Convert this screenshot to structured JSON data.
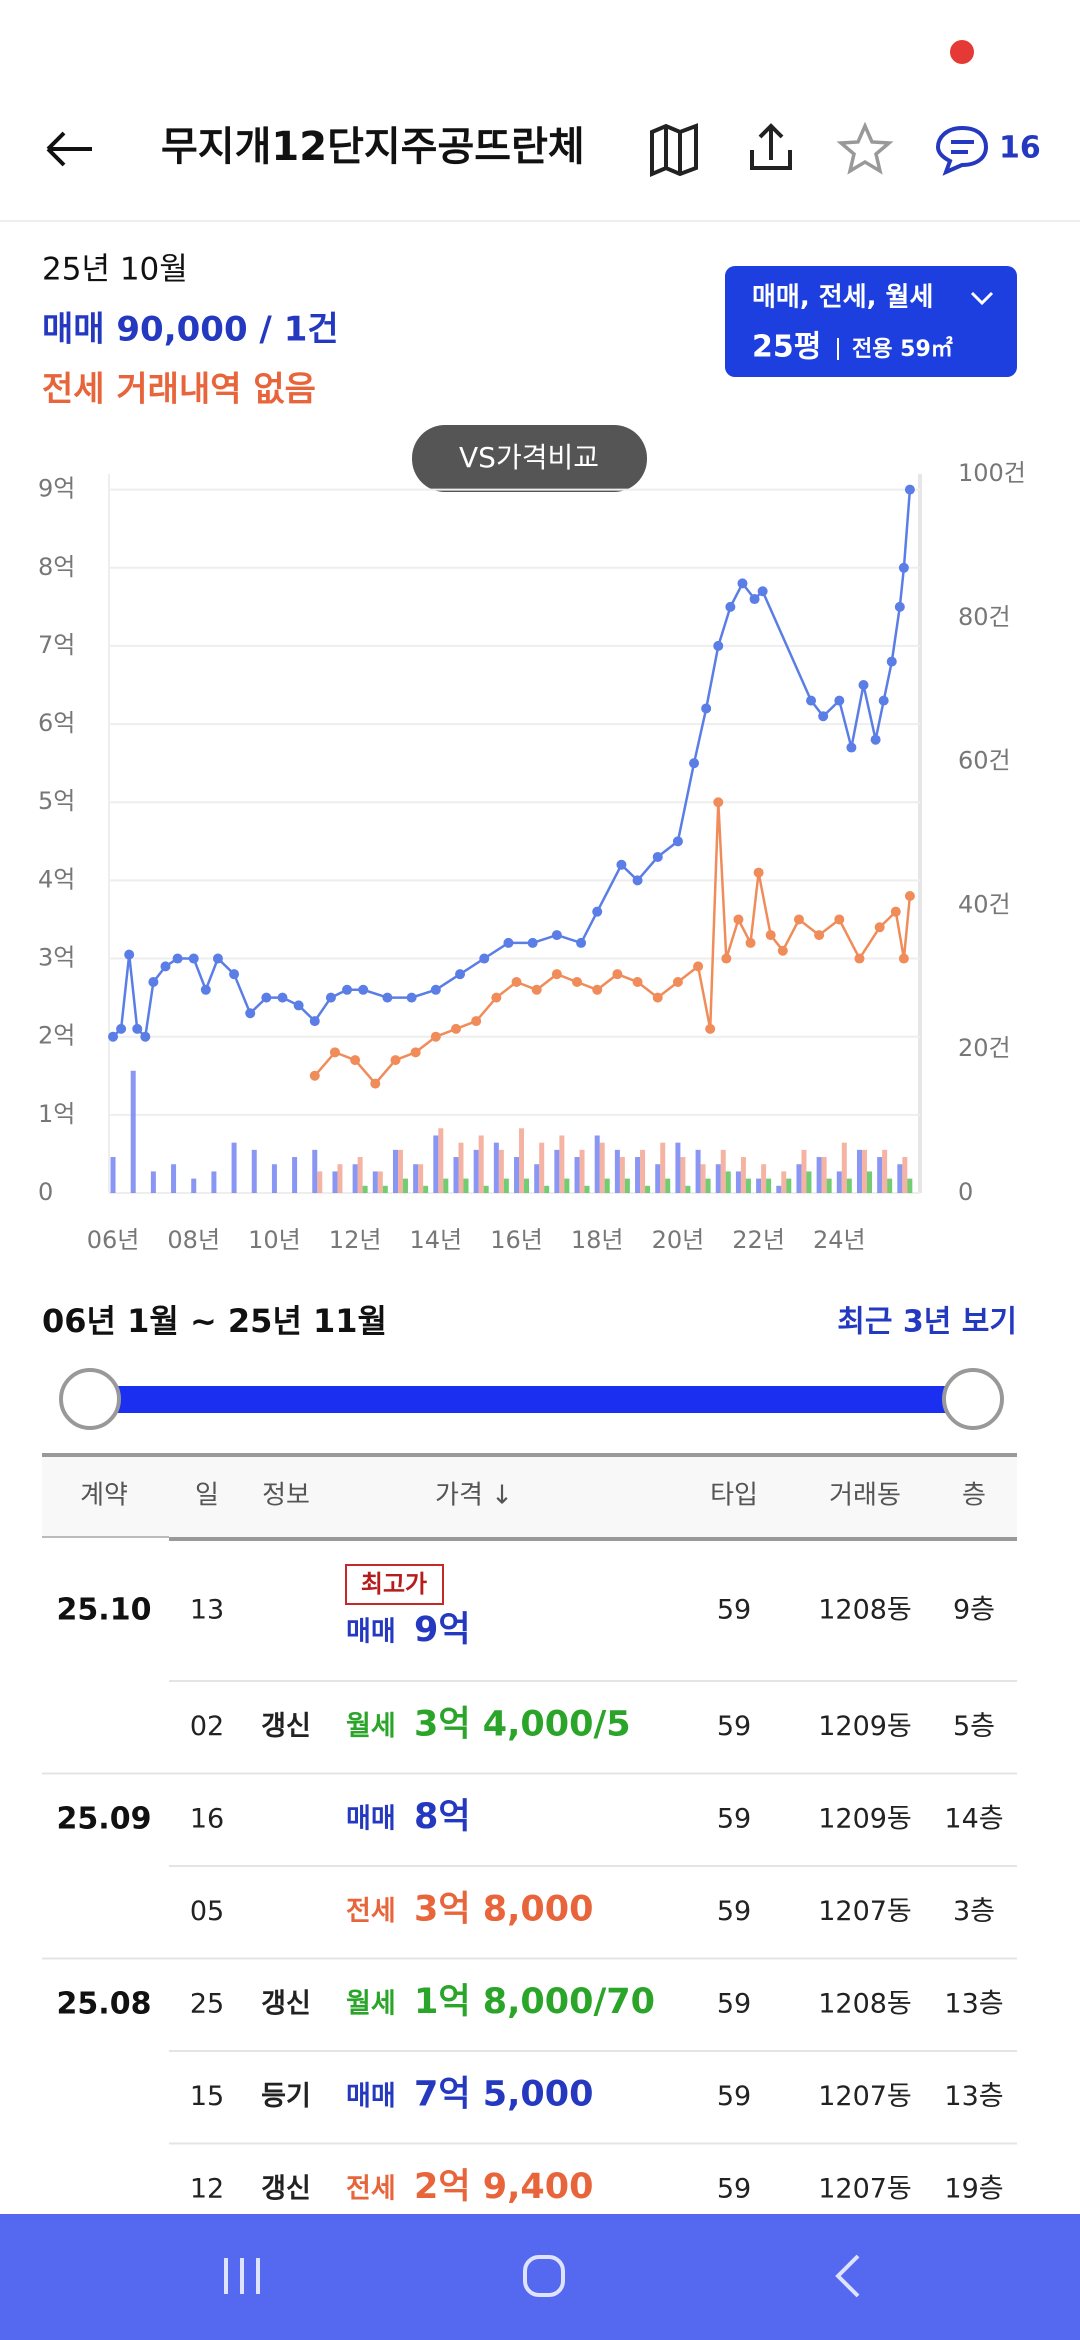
{
  "status": {
    "indicator": "record"
  },
  "header": {
    "title": "무지개12단지주공뜨란체",
    "comment_count": "16"
  },
  "summary": {
    "month": "25년 10월",
    "sale": "매매 90,000 / 1건",
    "jeonse": "전세 거래내역 없음"
  },
  "filter": {
    "types": "매매, 전세, 월세",
    "size": "25평",
    "area": "전용 59㎡"
  },
  "compare_button": "VS가격비교",
  "chart_data": {
    "type": "line",
    "xlim": [
      2005.9,
      2026.0
    ],
    "xticks": [
      {
        "value": 2006,
        "label": "06년"
      },
      {
        "value": 2008,
        "label": "08년"
      },
      {
        "value": 2010,
        "label": "10년"
      },
      {
        "value": 2012,
        "label": "12년"
      },
      {
        "value": 2014,
        "label": "14년"
      },
      {
        "value": 2016,
        "label": "16년"
      },
      {
        "value": 2018,
        "label": "18년"
      },
      {
        "value": 2020,
        "label": "20년"
      },
      {
        "value": 2022,
        "label": "22년"
      },
      {
        "value": 2024,
        "label": "24년"
      }
    ],
    "ylim": [
      0,
      9.2
    ],
    "yticks": [
      0,
      {
        "value": 1,
        "label": "1억"
      },
      {
        "value": 2,
        "label": "2억"
      },
      {
        "value": 3,
        "label": "3억"
      },
      {
        "value": 4,
        "label": "4억"
      },
      {
        "value": 5,
        "label": "5억"
      },
      {
        "value": 6,
        "label": "6억"
      },
      {
        "value": 7,
        "label": "7억"
      },
      {
        "value": 8,
        "label": "8억"
      },
      {
        "value": 9,
        "label": "9억"
      }
    ],
    "y2lim": [
      0,
      100
    ],
    "y2ticks": [
      0,
      {
        "value": 20,
        "label": "20건"
      },
      {
        "value": 40,
        "label": "40건"
      },
      {
        "value": 60,
        "label": "60건"
      },
      {
        "value": 80,
        "label": "80건"
      },
      {
        "value": 100,
        "label": "100건"
      }
    ],
    "grid": true,
    "series": [
      {
        "type": "bar",
        "axis": "y2",
        "color": "#6b7cf0",
        "x": [
          2006.0,
          2006.5,
          2007.0,
          2007.5,
          2008.0,
          2008.5,
          2009.0,
          2009.5,
          2010.0,
          2010.5,
          2011.0,
          2011.5,
          2012.0,
          2012.5,
          2013.0,
          2013.5,
          2014.0,
          2014.5,
          2015.0,
          2015.5,
          2016.0,
          2016.5,
          2017.0,
          2017.5,
          2018.0,
          2018.5,
          2019.0,
          2019.5,
          2020.0,
          2020.5,
          2021.0,
          2021.5,
          2022.0,
          2022.5,
          2023.0,
          2023.5,
          2024.0,
          2024.5,
          2025.0,
          2025.5
        ],
        "values": [
          5,
          17,
          3,
          4,
          2,
          3,
          7,
          6,
          4,
          5,
          6,
          3,
          4,
          3,
          6,
          4,
          8,
          5,
          6,
          7,
          5,
          4,
          6,
          5,
          8,
          6,
          5,
          4,
          7,
          6,
          4,
          3,
          2,
          1,
          4,
          5,
          3,
          6,
          5,
          4
        ]
      },
      {
        "type": "bar",
        "axis": "y2",
        "color": "#f3a08c",
        "x": [
          2006.0,
          2006.5,
          2007.0,
          2007.5,
          2008.0,
          2008.5,
          2009.0,
          2009.5,
          2010.0,
          2010.5,
          2011.0,
          2011.5,
          2012.0,
          2012.5,
          2013.0,
          2013.5,
          2014.0,
          2014.5,
          2015.0,
          2015.5,
          2016.0,
          2016.5,
          2017.0,
          2017.5,
          2018.0,
          2018.5,
          2019.0,
          2019.5,
          2020.0,
          2020.5,
          2021.0,
          2021.5,
          2022.0,
          2022.5,
          2023.0,
          2023.5,
          2024.0,
          2024.5,
          2025.0,
          2025.5
        ],
        "values": [
          null,
          null,
          null,
          null,
          null,
          null,
          null,
          null,
          null,
          null,
          3,
          4,
          5,
          3,
          6,
          4,
          9,
          7,
          8,
          6,
          9,
          7,
          8,
          6,
          7,
          5,
          6,
          7,
          5,
          4,
          6,
          5,
          4,
          3,
          6,
          5,
          7,
          6,
          6,
          5
        ]
      },
      {
        "type": "bar",
        "axis": "y2",
        "color": "#4fbf4f",
        "x": [
          2006.0,
          2006.5,
          2007.0,
          2007.5,
          2008.0,
          2008.5,
          2009.0,
          2009.5,
          2010.0,
          2010.5,
          2011.0,
          2011.5,
          2012.0,
          2012.5,
          2013.0,
          2013.5,
          2014.0,
          2014.5,
          2015.0,
          2015.5,
          2016.0,
          2016.5,
          2017.0,
          2017.5,
          2018.0,
          2018.5,
          2019.0,
          2019.5,
          2020.0,
          2020.5,
          2021.0,
          2021.5,
          2022.0,
          2022.5,
          2023.0,
          2023.5,
          2024.0,
          2024.5,
          2025.0,
          2025.5
        ],
        "values": [
          null,
          null,
          null,
          null,
          null,
          null,
          null,
          null,
          null,
          null,
          null,
          null,
          1,
          1,
          2,
          1,
          2,
          2,
          1,
          2,
          2,
          1,
          2,
          1,
          2,
          2,
          1,
          2,
          1,
          2,
          3,
          2,
          2,
          2,
          3,
          2,
          2,
          3,
          2,
          2
        ]
      },
      {
        "type": "line",
        "color": "#f08c5a",
        "x": [
          2011.0,
          2011.5,
          2012.0,
          2012.5,
          2013.0,
          2013.5,
          2014.0,
          2014.5,
          2015.0,
          2015.5,
          2016.0,
          2016.5,
          2017.0,
          2017.5,
          2018.0,
          2018.5,
          2019.0,
          2019.5,
          2020.0,
          2020.5,
          2020.8,
          2021.0,
          2021.2,
          2021.5,
          2021.8,
          2022.0,
          2022.3,
          2022.6,
          2023.0,
          2023.5,
          2024.0,
          2024.5,
          2025.0,
          2025.4,
          2025.6,
          2025.75
        ],
        "values": [
          1.5,
          1.8,
          1.7,
          1.4,
          1.7,
          1.8,
          2.0,
          2.1,
          2.2,
          2.5,
          2.7,
          2.6,
          2.8,
          2.7,
          2.6,
          2.8,
          2.7,
          2.5,
          2.7,
          2.9,
          2.1,
          5.0,
          3.0,
          3.5,
          3.2,
          4.1,
          3.3,
          3.1,
          3.5,
          3.3,
          3.5,
          3.0,
          3.4,
          3.6,
          3.0,
          3.8
        ]
      },
      {
        "type": "line",
        "color": "#5a7de6",
        "x": [
          2006.0,
          2006.2,
          2006.4,
          2006.6,
          2006.8,
          2007.0,
          2007.3,
          2007.6,
          2008.0,
          2008.3,
          2008.6,
          2009.0,
          2009.4,
          2009.8,
          2010.2,
          2010.6,
          2011.0,
          2011.4,
          2011.8,
          2012.2,
          2012.8,
          2013.4,
          2014.0,
          2014.6,
          2015.2,
          2015.8,
          2016.4,
          2017.0,
          2017.6,
          2018.0,
          2018.6,
          2019.0,
          2019.5,
          2020.0,
          2020.4,
          2020.7,
          2021.0,
          2021.3,
          2021.6,
          2021.9,
          2022.1,
          2023.3,
          2023.6,
          2024.0,
          2024.3,
          2024.6,
          2024.9,
          2025.1,
          2025.3,
          2025.5,
          2025.6,
          2025.75
        ],
        "values": [
          2.0,
          2.1,
          3.05,
          2.1,
          2.0,
          2.7,
          2.9,
          3.0,
          3.0,
          2.6,
          3.0,
          2.8,
          2.3,
          2.5,
          2.5,
          2.4,
          2.2,
          2.5,
          2.6,
          2.6,
          2.5,
          2.5,
          2.6,
          2.8,
          3.0,
          3.2,
          3.2,
          3.3,
          3.2,
          3.6,
          4.2,
          4.0,
          4.3,
          4.5,
          5.5,
          6.2,
          7.0,
          7.5,
          7.8,
          7.6,
          7.7,
          6.3,
          6.1,
          6.3,
          5.7,
          6.5,
          5.8,
          6.3,
          6.8,
          7.5,
          8.0,
          9.0
        ]
      }
    ]
  },
  "range": {
    "label": "06년 1월 ~ 25년 11월",
    "recent": "최근 3년 보기"
  },
  "table": {
    "headers": [
      "계약",
      "일",
      "정보",
      "가격 ↓",
      "타입",
      "거래동",
      "층"
    ],
    "kind_colors": {
      "매매": "#2438c0",
      "전세": "#e8653c",
      "월세": "#2aa52a"
    },
    "rows": [
      {
        "contract": "25.10",
        "day": "13",
        "badge": "최고가",
        "kind": "매매",
        "price": "9억",
        "type": "59",
        "dong": "1208동",
        "floor": "9층"
      },
      {
        "day": "02",
        "info": "갱신",
        "kind": "월세",
        "price": "3억 4,000/5",
        "type": "59",
        "dong": "1209동",
        "floor": "5층"
      },
      {
        "contract": "25.09",
        "day": "16",
        "kind": "매매",
        "price": "8억",
        "type": "59",
        "dong": "1209동",
        "floor": "14층"
      },
      {
        "day": "05",
        "kind": "전세",
        "price": "3억 8,000",
        "type": "59",
        "dong": "1207동",
        "floor": "3층"
      },
      {
        "contract": "25.08",
        "day": "25",
        "info": "갱신",
        "kind": "월세",
        "price": "1억 8,000/70",
        "type": "59",
        "dong": "1208동",
        "floor": "13층"
      },
      {
        "day": "15",
        "info": "등기",
        "kind": "매매",
        "price": "7억 5,000",
        "type": "59",
        "dong": "1207동",
        "floor": "13층"
      },
      {
        "day": "12",
        "info": "갱신",
        "kind": "전세",
        "price": "2억 9,400",
        "type": "59",
        "dong": "1207동",
        "floor": "19층"
      }
    ]
  }
}
